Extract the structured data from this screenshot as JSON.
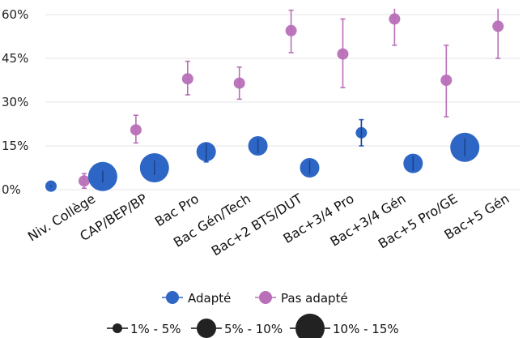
{
  "chart_data": {
    "type": "scatter",
    "categories": [
      "Niv. Collège",
      "CAP/BEP/BP",
      "Bac Pro",
      "Bac Gén/Tech",
      "Bac+2 BTS/DUT",
      "Bac+3/4 Pro",
      "Bac+3/4 Gén",
      "Bac+5 Pro/GE",
      "Bac+5 Gén"
    ],
    "y_ticks": [
      "0%",
      "15%",
      "30%",
      "45%",
      "60%"
    ],
    "ylim": [
      0,
      62
    ],
    "series": [
      {
        "name": "Adapté",
        "color": "#2d66c4",
        "values": [
          1.2,
          4.5,
          7.5,
          13,
          15,
          7.5,
          19.5,
          9,
          14.5
        ],
        "err_low": [
          0.8,
          2.5,
          5,
          9.5,
          12.5,
          5.5,
          15,
          6.5,
          11.5
        ],
        "err_high": [
          1.6,
          6.5,
          10,
          16,
          17.5,
          10,
          24,
          11.5,
          17.5
        ],
        "size_class": [
          "small",
          "large",
          "large",
          "medium",
          "medium",
          "medium",
          "small",
          "medium",
          "large"
        ]
      },
      {
        "name": "Pas adapté",
        "color": "#b86fb8",
        "values": [
          3,
          20.5,
          38,
          36.5,
          54.5,
          46.5,
          58.5,
          37.5,
          56
        ],
        "err_low": [
          0.5,
          16,
          32.5,
          31,
          47,
          35,
          49.5,
          25,
          45
        ],
        "err_high": [
          5.5,
          25.5,
          44,
          42,
          61.5,
          58.5,
          65,
          49.5,
          65
        ],
        "size_class": [
          "small",
          "small",
          "small",
          "small",
          "small",
          "small",
          "small",
          "small",
          "small"
        ]
      }
    ],
    "size_legend": [
      {
        "label": "1% - 5%",
        "class": "small"
      },
      {
        "label": "5% - 10%",
        "class": "medium"
      },
      {
        "label": "10% - 15%",
        "class": "large"
      }
    ]
  }
}
